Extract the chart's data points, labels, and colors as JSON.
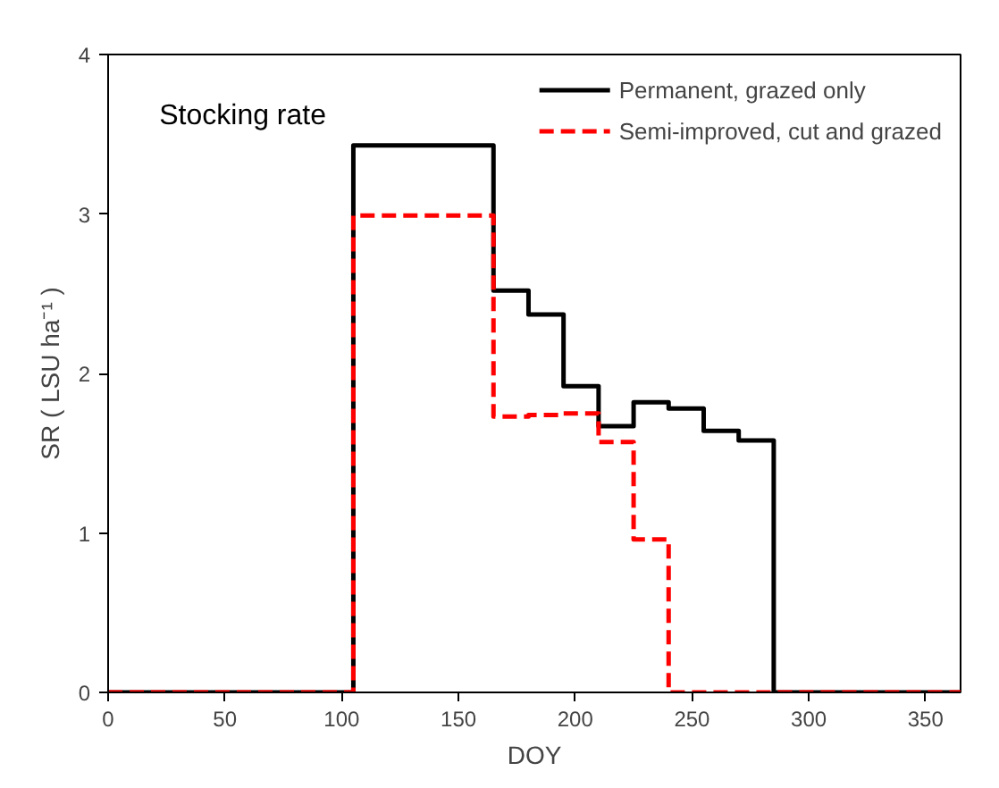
{
  "chart_data": {
    "type": "step",
    "title": "Stocking rate",
    "xlabel": "DOY",
    "ylabel": "SR ( LSU ha⁻¹ )",
    "xlim": [
      0,
      365
    ],
    "ylim": [
      0,
      4
    ],
    "xticks": [
      0,
      50,
      100,
      150,
      200,
      250,
      300,
      350
    ],
    "yticks": [
      0,
      1,
      2,
      3,
      4
    ],
    "grid": false,
    "legend": "top right",
    "series": [
      {
        "name": "Permanent, grazed only",
        "color": "#000000",
        "line_style": "solid",
        "x": [
          0,
          105,
          165,
          180,
          195,
          210,
          225,
          240,
          255,
          270,
          285,
          365
        ],
        "values": [
          0,
          3.43,
          2.52,
          2.37,
          1.92,
          1.67,
          1.82,
          1.78,
          1.64,
          1.58,
          0,
          0
        ]
      },
      {
        "name": "Semi-improved, cut and grazed",
        "color": "#ff0000",
        "line_style": "dashed",
        "x": [
          0,
          105,
          165,
          180,
          195,
          210,
          225,
          240,
          365
        ],
        "values": [
          0,
          2.99,
          1.73,
          1.74,
          1.75,
          1.57,
          0.96,
          0,
          0
        ]
      }
    ]
  }
}
